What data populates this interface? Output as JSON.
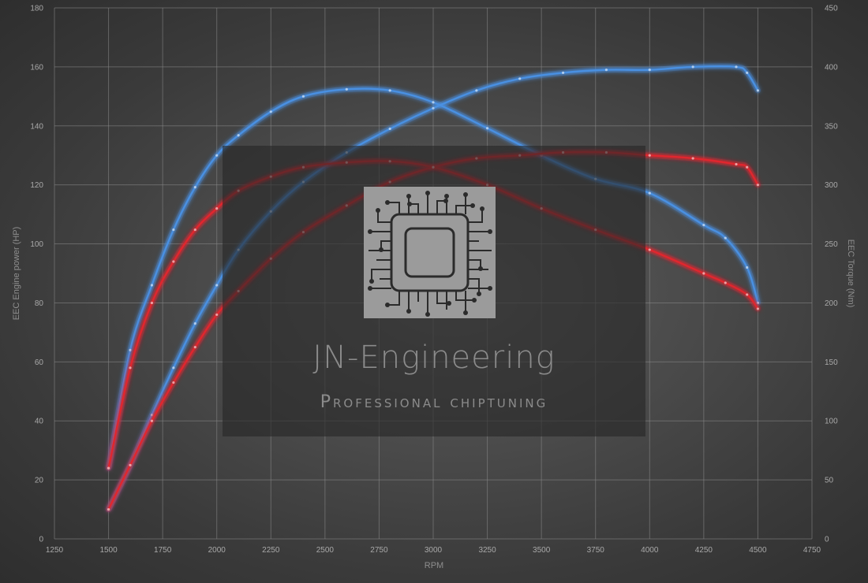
{
  "colors": {
    "stock": "#4a90e2",
    "tuned": "#e0262e",
    "grid": "#8a8a8a",
    "text": "#a9a9a9"
  },
  "watermark": {
    "title": "JN-Engineering",
    "subtitle": "Professional chiptuning",
    "icon": "circuit-chip-icon"
  },
  "chart_data": {
    "type": "line",
    "xlabel": "RPM",
    "ylabel_left": "EEC Engine power (HP)",
    "ylabel_right": "EEC Torque (Nm)",
    "xlim": [
      1250,
      4750
    ],
    "x_ticks": [
      1250,
      1500,
      1750,
      2000,
      2250,
      2500,
      2750,
      3000,
      3250,
      3500,
      3750,
      4000,
      4250,
      4500,
      4750
    ],
    "ylim_left": [
      0,
      180
    ],
    "y_ticks_left": [
      0,
      20,
      40,
      60,
      80,
      100,
      120,
      140,
      160,
      180
    ],
    "ylim_right": [
      0,
      450
    ],
    "y_ticks_right": [
      0,
      50,
      100,
      150,
      200,
      250,
      300,
      350,
      400,
      450
    ],
    "grid": true,
    "series": [
      {
        "color": "#4a90e2",
        "axis": "left",
        "points": [
          [
            1500,
            10
          ],
          [
            1600,
            25
          ],
          [
            1700,
            42
          ],
          [
            1800,
            58
          ],
          [
            1900,
            73
          ],
          [
            2000,
            86
          ],
          [
            2100,
            98
          ],
          [
            2250,
            111
          ],
          [
            2400,
            121
          ],
          [
            2600,
            131
          ],
          [
            2800,
            139
          ],
          [
            3000,
            146
          ],
          [
            3200,
            152
          ],
          [
            3400,
            156
          ],
          [
            3600,
            158
          ],
          [
            3800,
            159
          ],
          [
            4000,
            159
          ],
          [
            4200,
            160
          ],
          [
            4400,
            160
          ],
          [
            4450,
            158
          ],
          [
            4500,
            152
          ]
        ]
      },
      {
        "color": "#4a90e2",
        "axis": "right",
        "points": [
          [
            1500,
            60
          ],
          [
            1600,
            160
          ],
          [
            1700,
            215
          ],
          [
            1800,
            262
          ],
          [
            1900,
            298
          ],
          [
            2000,
            325
          ],
          [
            2100,
            342
          ],
          [
            2250,
            362
          ],
          [
            2400,
            375
          ],
          [
            2600,
            381
          ],
          [
            2800,
            380
          ],
          [
            3000,
            370
          ],
          [
            3250,
            348
          ],
          [
            3500,
            325
          ],
          [
            3750,
            305
          ],
          [
            4000,
            293
          ],
          [
            4250,
            266
          ],
          [
            4350,
            255
          ],
          [
            4450,
            230
          ],
          [
            4500,
            200
          ]
        ]
      },
      {
        "color": "#e0262e",
        "axis": "left",
        "points": [
          [
            1500,
            10
          ],
          [
            1600,
            25
          ],
          [
            1700,
            40
          ],
          [
            1800,
            53
          ],
          [
            1900,
            65
          ],
          [
            2000,
            76
          ],
          [
            2100,
            84
          ],
          [
            2250,
            95
          ],
          [
            2400,
            104
          ],
          [
            2600,
            113
          ],
          [
            2800,
            121
          ],
          [
            3000,
            126
          ],
          [
            3200,
            129
          ],
          [
            3400,
            130
          ],
          [
            3600,
            131
          ],
          [
            3800,
            131
          ],
          [
            4000,
            130
          ],
          [
            4200,
            129
          ],
          [
            4400,
            127
          ],
          [
            4450,
            126
          ],
          [
            4500,
            120
          ]
        ]
      },
      {
        "color": "#e0262e",
        "axis": "right",
        "points": [
          [
            1500,
            60
          ],
          [
            1600,
            145
          ],
          [
            1700,
            200
          ],
          [
            1800,
            235
          ],
          [
            1900,
            262
          ],
          [
            2000,
            280
          ],
          [
            2100,
            295
          ],
          [
            2250,
            307
          ],
          [
            2400,
            315
          ],
          [
            2600,
            319
          ],
          [
            2800,
            320
          ],
          [
            3000,
            315
          ],
          [
            3250,
            300
          ],
          [
            3500,
            280
          ],
          [
            3750,
            262
          ],
          [
            4000,
            245
          ],
          [
            4250,
            225
          ],
          [
            4350,
            217
          ],
          [
            4450,
            207
          ],
          [
            4500,
            195
          ]
        ]
      }
    ]
  }
}
